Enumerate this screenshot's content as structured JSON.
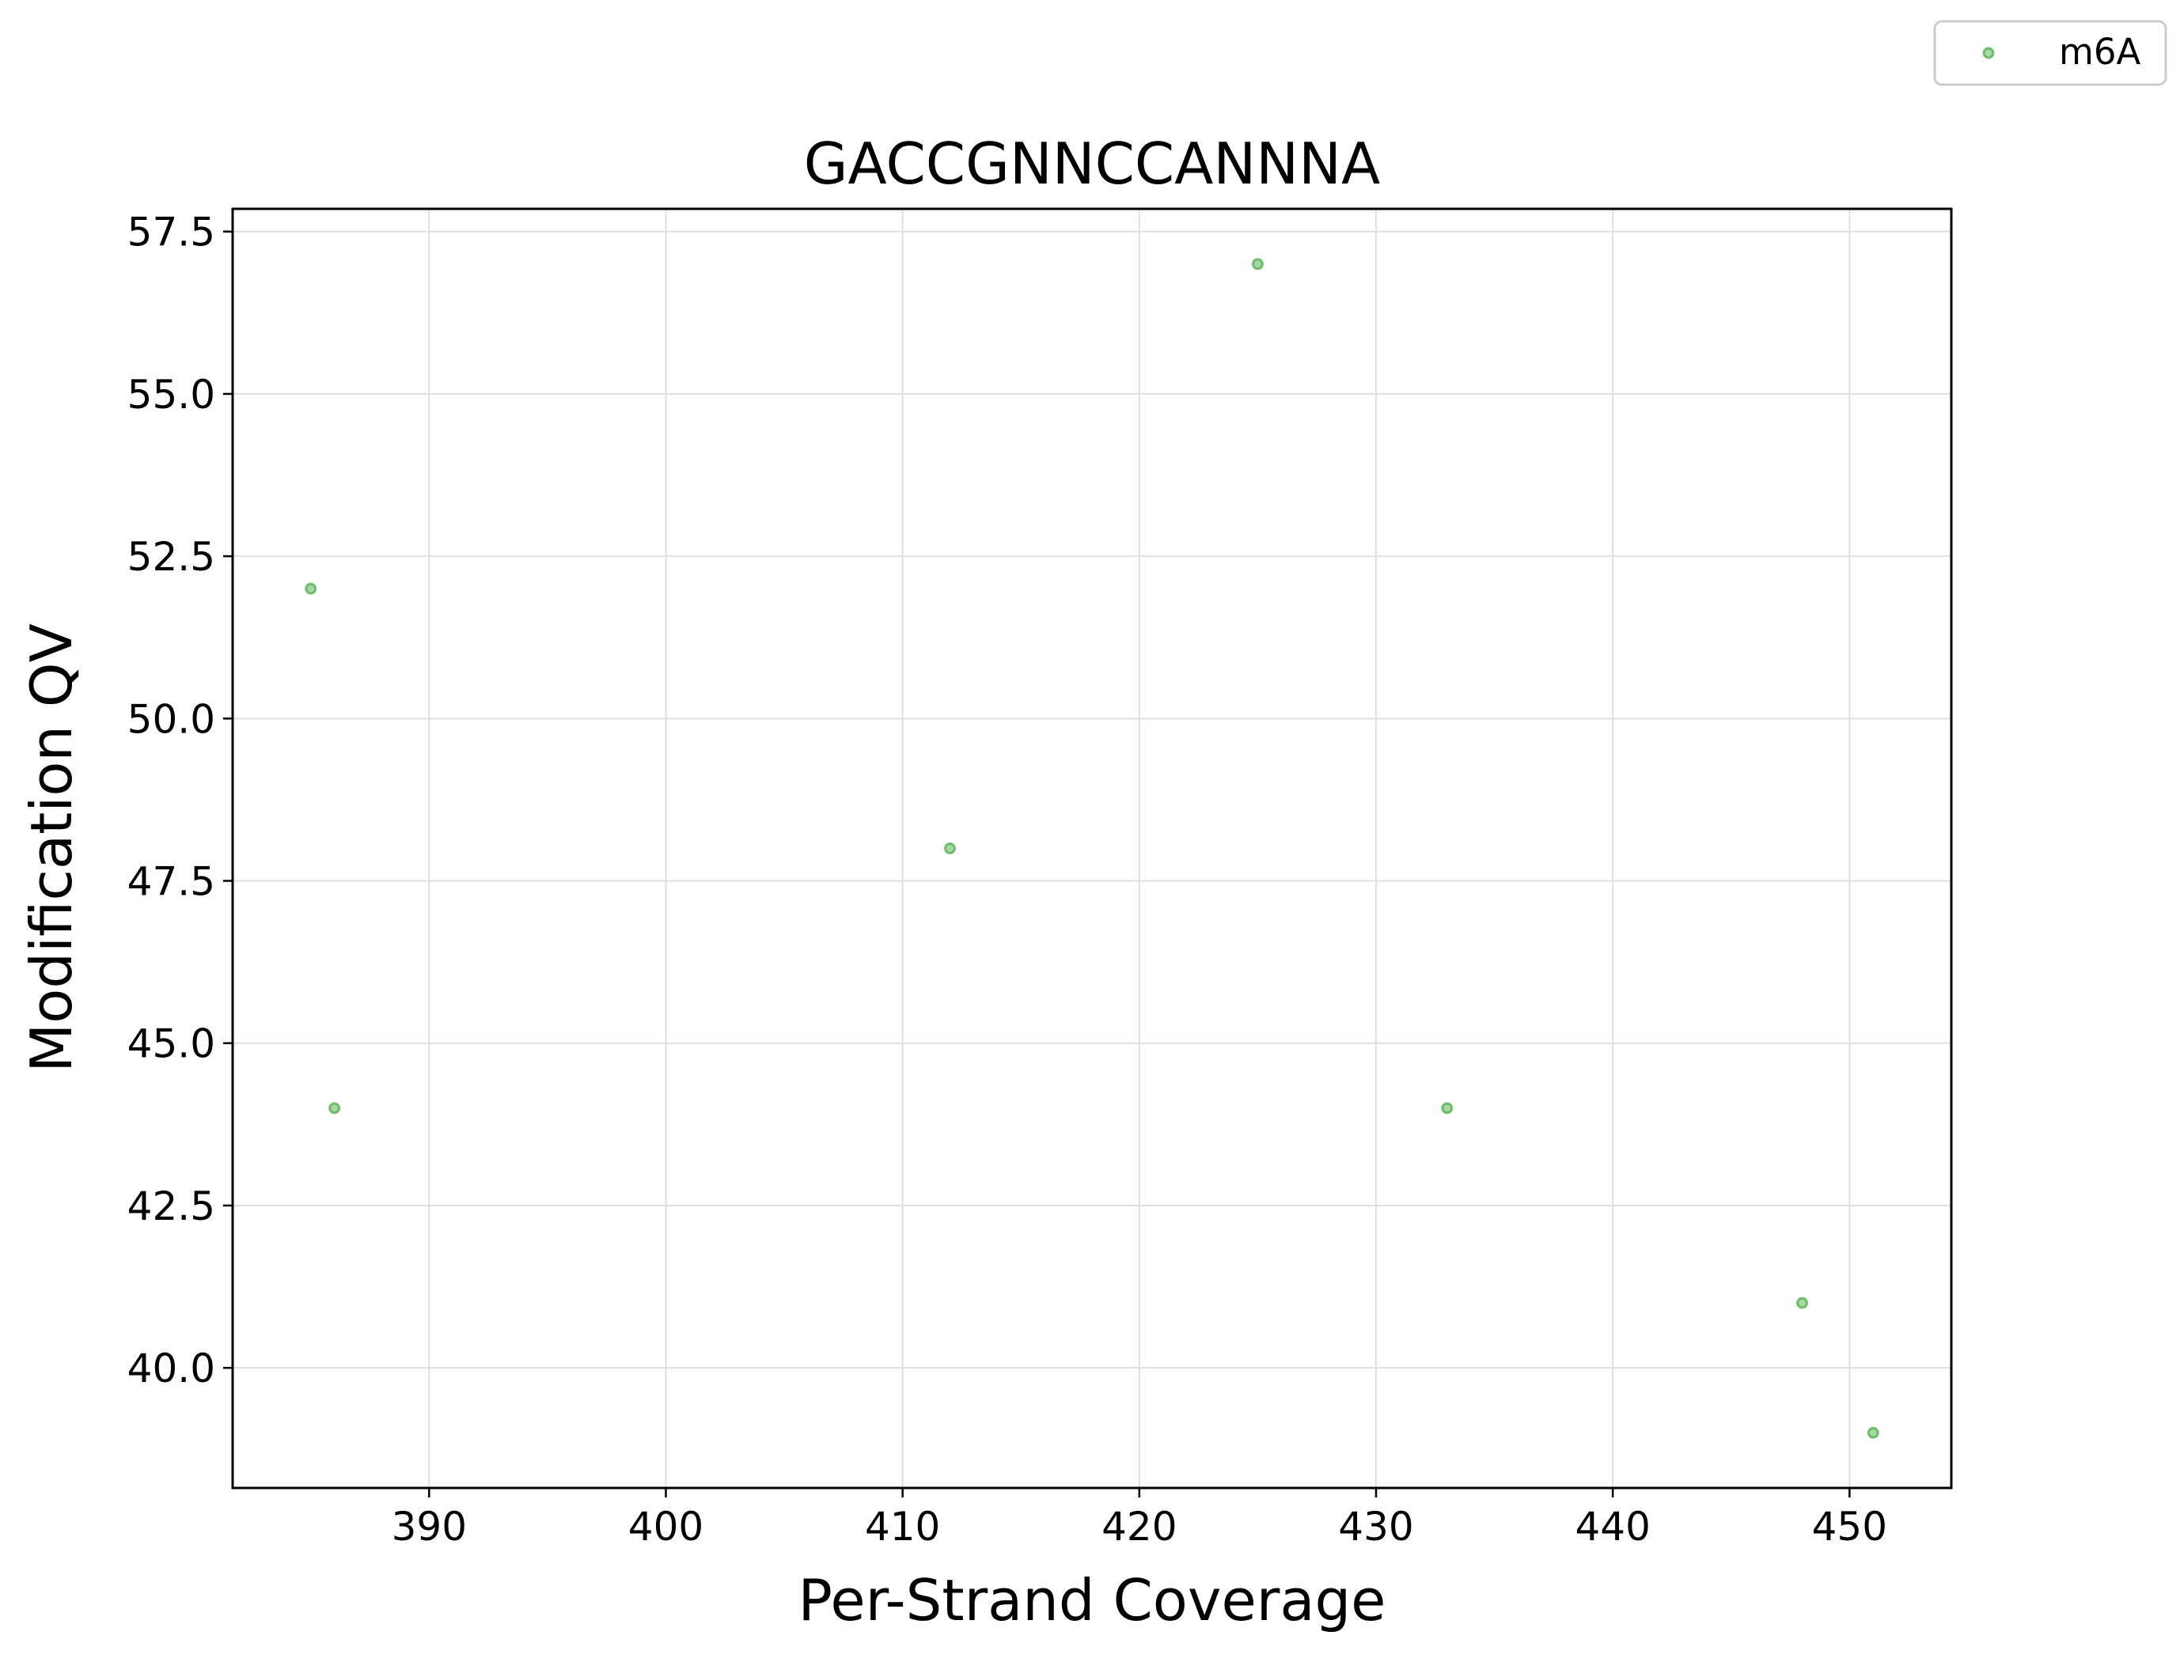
{
  "chart_data": {
    "type": "scatter",
    "title": "GACCGNNCCANNNA",
    "xlabel": "Per-Strand Coverage",
    "ylabel": "Modification QV",
    "xlim": [
      381.7,
      454.3
    ],
    "ylim": [
      38.15,
      57.85
    ],
    "xticks": [
      390,
      400,
      410,
      420,
      430,
      440,
      450
    ],
    "yticks": [
      40.0,
      42.5,
      45.0,
      47.5,
      50.0,
      52.5,
      55.0,
      57.5
    ],
    "xtick_labels": [
      "390",
      "400",
      "410",
      "420",
      "430",
      "440",
      "450"
    ],
    "ytick_labels": [
      "40.0",
      "42.5",
      "45.0",
      "47.5",
      "50.0",
      "52.5",
      "55.0",
      "57.5"
    ],
    "grid": true,
    "legend_position": "top-right (outside plot)",
    "series": [
      {
        "name": "m6A",
        "color": "#4daf4a",
        "x": [
          385,
          386,
          412,
          425,
          433,
          448,
          451
        ],
        "y": [
          52,
          44,
          48,
          57,
          44,
          41,
          39
        ]
      }
    ]
  }
}
